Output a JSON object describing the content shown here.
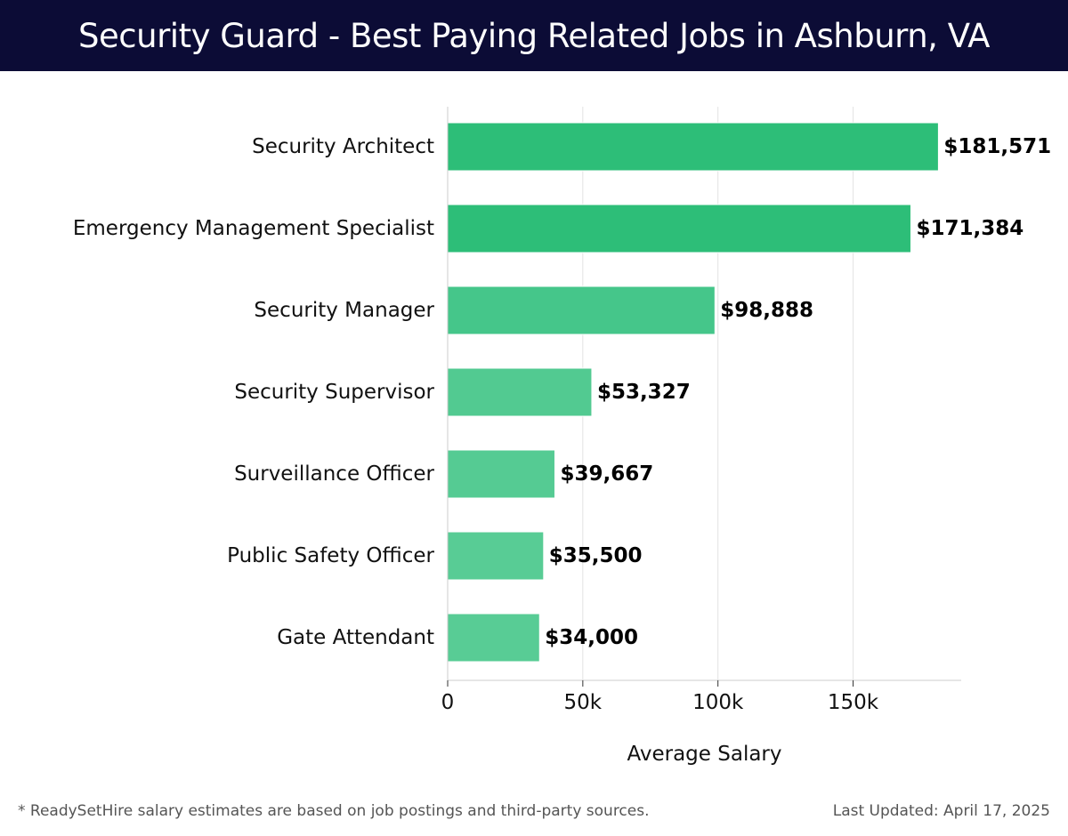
{
  "header": {
    "title": "Security Guard - Best Paying Related Jobs in Ashburn, VA"
  },
  "chart_data": {
    "type": "bar",
    "orientation": "horizontal",
    "title": "Security Guard - Best Paying Related Jobs in Ashburn, VA",
    "xlabel": "Average Salary",
    "ylabel": "",
    "xlim": [
      0,
      190000
    ],
    "xticks": [
      0,
      50000,
      100000,
      150000
    ],
    "xtick_labels": [
      "0",
      "50k",
      "100k",
      "150k"
    ],
    "grid": true,
    "categories": [
      "Security Architect",
      "Emergency Management Specialist",
      "Security Manager",
      "Security Supervisor",
      "Surveillance Officer",
      "Public Safety Officer",
      "Gate Attendant"
    ],
    "values": [
      181571,
      171384,
      98888,
      53327,
      39667,
      35500,
      34000
    ],
    "value_labels": [
      "$181,571",
      "$171,384",
      "$98,888",
      "$53,327",
      "$39,667",
      "$35,500",
      "$34,000"
    ],
    "colors": [
      "#2dbe78",
      "#2dbe78",
      "#45c68a",
      "#52ca91",
      "#55cb93",
      "#58cc95",
      "#58cc95"
    ]
  },
  "footer": {
    "note": "* ReadySetHire salary estimates are based on job postings and third-party sources.",
    "updated": "Last Updated: April 17, 2025"
  }
}
